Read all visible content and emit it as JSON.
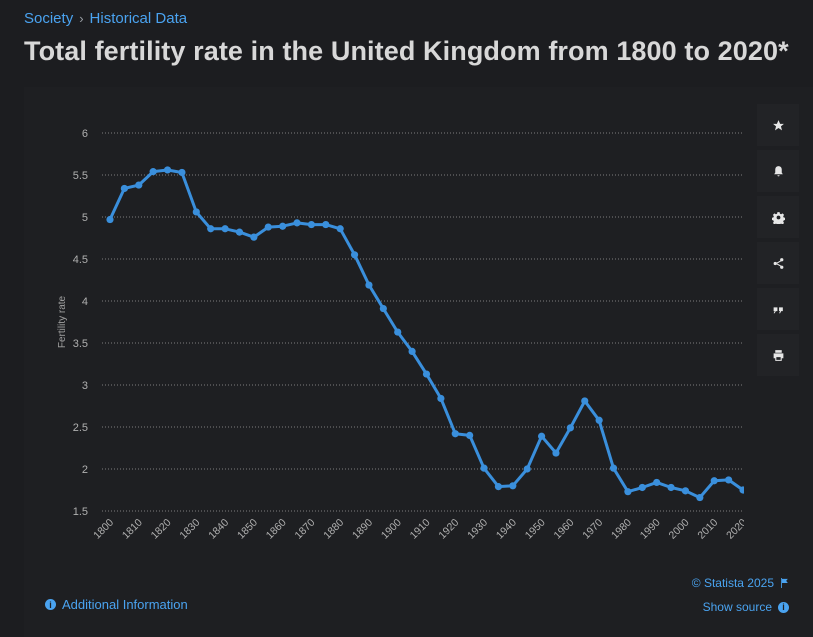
{
  "breadcrumb": {
    "items": [
      "Society",
      "Historical Data"
    ],
    "separator": "›"
  },
  "title": "Total fertility rate in the United Kingdom from 1800 to 2020*",
  "toolbar": {
    "icons": [
      "star-icon",
      "bell-icon",
      "gear-icon",
      "share-icon",
      "quote-icon",
      "print-icon"
    ]
  },
  "footer": {
    "additional_info": "Additional Information",
    "copyright": "© Statista 2025",
    "show_source": "Show source"
  },
  "colors": {
    "line": "#3a8fdc",
    "accent": "#4aa3f0",
    "background": "#1c1d20",
    "grid": "#c8c8c8"
  },
  "chart_data": {
    "type": "line",
    "ylabel": "Fertility rate",
    "xlabel": "",
    "ylim": [
      1.5,
      6
    ],
    "yticks": [
      "6",
      "5.5",
      "5",
      "4.5",
      "4",
      "3.5",
      "3",
      "2.5",
      "2",
      "1.5"
    ],
    "xticks": [
      "1800",
      "1810",
      "1820",
      "1830",
      "1840",
      "1850",
      "1860",
      "1870",
      "1880",
      "1890",
      "1900",
      "1910",
      "1920",
      "1930",
      "1940",
      "1950",
      "1960",
      "1970",
      "1980",
      "1990",
      "2000",
      "2010",
      "2020"
    ],
    "grid": "horizontal dotted",
    "x": [
      1800,
      1805,
      1810,
      1815,
      1820,
      1825,
      1830,
      1835,
      1840,
      1845,
      1850,
      1855,
      1860,
      1865,
      1870,
      1875,
      1880,
      1885,
      1890,
      1895,
      1900,
      1905,
      1910,
      1915,
      1920,
      1925,
      1930,
      1935,
      1940,
      1945,
      1950,
      1955,
      1960,
      1965,
      1970,
      1975,
      1980,
      1985,
      1990,
      1995,
      2000,
      2005,
      2010,
      2015,
      2020
    ],
    "values": [
      4.97,
      5.34,
      5.38,
      5.54,
      5.56,
      5.53,
      5.06,
      4.86,
      4.86,
      4.82,
      4.76,
      4.88,
      4.89,
      4.93,
      4.91,
      4.91,
      4.86,
      4.55,
      4.19,
      3.91,
      3.63,
      3.4,
      3.13,
      2.84,
      2.42,
      2.4,
      2.01,
      1.79,
      1.8,
      2.0,
      2.39,
      2.19,
      2.49,
      2.81,
      2.58,
      2.01,
      1.73,
      1.78,
      1.84,
      1.78,
      1.74,
      1.66,
      1.86,
      1.87,
      1.75
    ]
  }
}
